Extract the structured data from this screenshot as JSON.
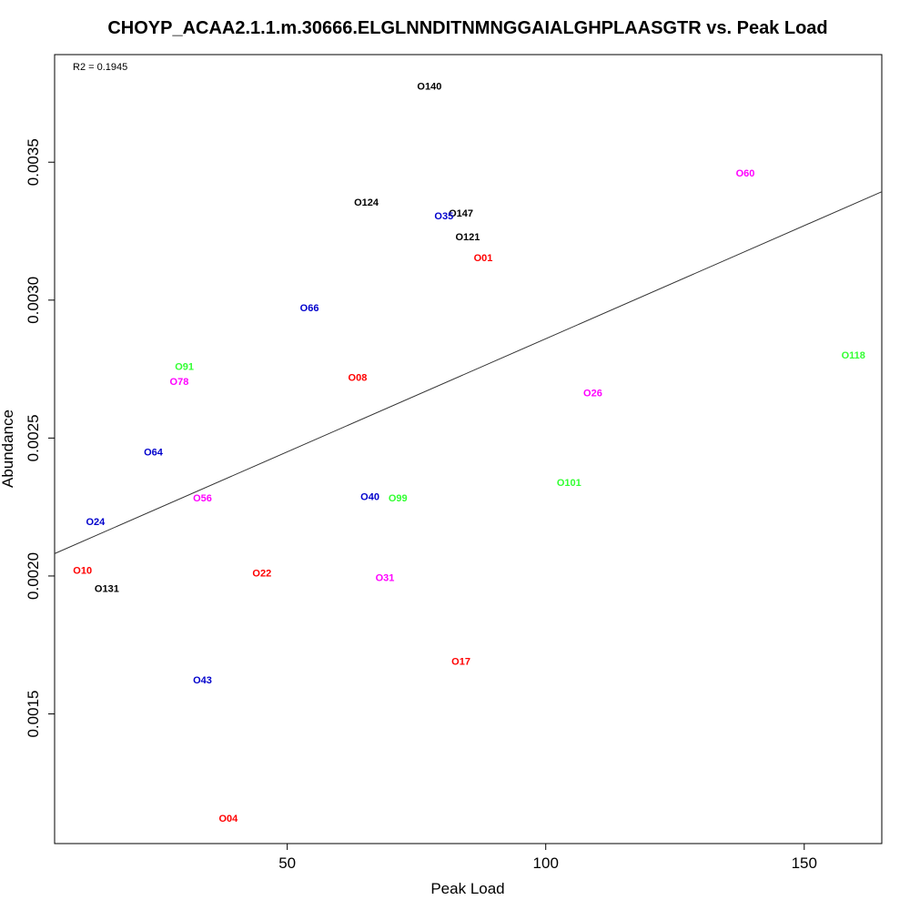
{
  "chart_data": {
    "type": "scatter",
    "title": "CHOYP_ACAA2.1.1.m.30666.ELGLNNDITNMNGGAIALGHPLAASGTR vs. Peak Load",
    "xlabel": "Peak Load",
    "ylabel": "Abundance",
    "annotation": "R2 = 0.1945",
    "xlim": [
      5,
      165
    ],
    "ylim": [
      0.00103,
      0.00389
    ],
    "x_ticks": [
      50,
      100,
      150
    ],
    "x_tick_labels": [
      "50",
      "100",
      "150"
    ],
    "y_ticks": [
      0.0015,
      0.002,
      0.0025,
      0.003,
      0.0035
    ],
    "y_tick_labels": [
      "0.0015",
      "0.0020",
      "0.0025",
      "0.0030",
      "0.0035"
    ],
    "grid": false,
    "regression_line": {
      "x": [
        5,
        165
      ],
      "y": [
        0.002081,
        0.003393
      ]
    },
    "colors": {
      "black": "#000000",
      "red": "#ff0000",
      "blue": "#0000cc",
      "green": "#33ff33",
      "magenta": "#ff00ff"
    },
    "points": [
      {
        "label": "O140",
        "x": 77.5,
        "y": 0.003777,
        "color": "black"
      },
      {
        "label": "O60",
        "x": 138.6,
        "y": 0.003461,
        "color": "magenta"
      },
      {
        "label": "O124",
        "x": 65.3,
        "y": 0.003355,
        "color": "black"
      },
      {
        "label": "O147",
        "x": 83.6,
        "y": 0.003316,
        "color": "black"
      },
      {
        "label": "O35",
        "x": 80.3,
        "y": 0.003306,
        "color": "blue"
      },
      {
        "label": "O121",
        "x": 84.9,
        "y": 0.00323,
        "color": "black"
      },
      {
        "label": "O01",
        "x": 87.9,
        "y": 0.003154,
        "color": "red"
      },
      {
        "label": "O66",
        "x": 54.3,
        "y": 0.002973,
        "color": "blue"
      },
      {
        "label": "O118",
        "x": 159.5,
        "y": 0.002801,
        "color": "green"
      },
      {
        "label": "O91",
        "x": 30.1,
        "y": 0.002761,
        "color": "green"
      },
      {
        "label": "O08",
        "x": 63.6,
        "y": 0.002721,
        "color": "red"
      },
      {
        "label": "O78",
        "x": 29.1,
        "y": 0.002706,
        "color": "magenta"
      },
      {
        "label": "O26",
        "x": 109.1,
        "y": 0.002665,
        "color": "magenta"
      },
      {
        "label": "O64",
        "x": 24.1,
        "y": 0.00245,
        "color": "blue"
      },
      {
        "label": "O101",
        "x": 104.5,
        "y": 0.002339,
        "color": "green"
      },
      {
        "label": "O56",
        "x": 33.6,
        "y": 0.002283,
        "color": "magenta"
      },
      {
        "label": "O40",
        "x": 66.0,
        "y": 0.002288,
        "color": "blue"
      },
      {
        "label": "O99",
        "x": 71.4,
        "y": 0.002283,
        "color": "green"
      },
      {
        "label": "O24",
        "x": 12.9,
        "y": 0.002197,
        "color": "blue"
      },
      {
        "label": "O10",
        "x": 10.4,
        "y": 0.002021,
        "color": "red"
      },
      {
        "label": "O22",
        "x": 45.1,
        "y": 0.002011,
        "color": "red"
      },
      {
        "label": "O31",
        "x": 68.9,
        "y": 0.001995,
        "color": "magenta"
      },
      {
        "label": "O131",
        "x": 15.1,
        "y": 0.001955,
        "color": "black"
      },
      {
        "label": "O17",
        "x": 83.6,
        "y": 0.001692,
        "color": "red"
      },
      {
        "label": "O43",
        "x": 33.6,
        "y": 0.001623,
        "color": "blue"
      },
      {
        "label": "O04",
        "x": 38.6,
        "y": 0.001122,
        "color": "red"
      }
    ]
  }
}
